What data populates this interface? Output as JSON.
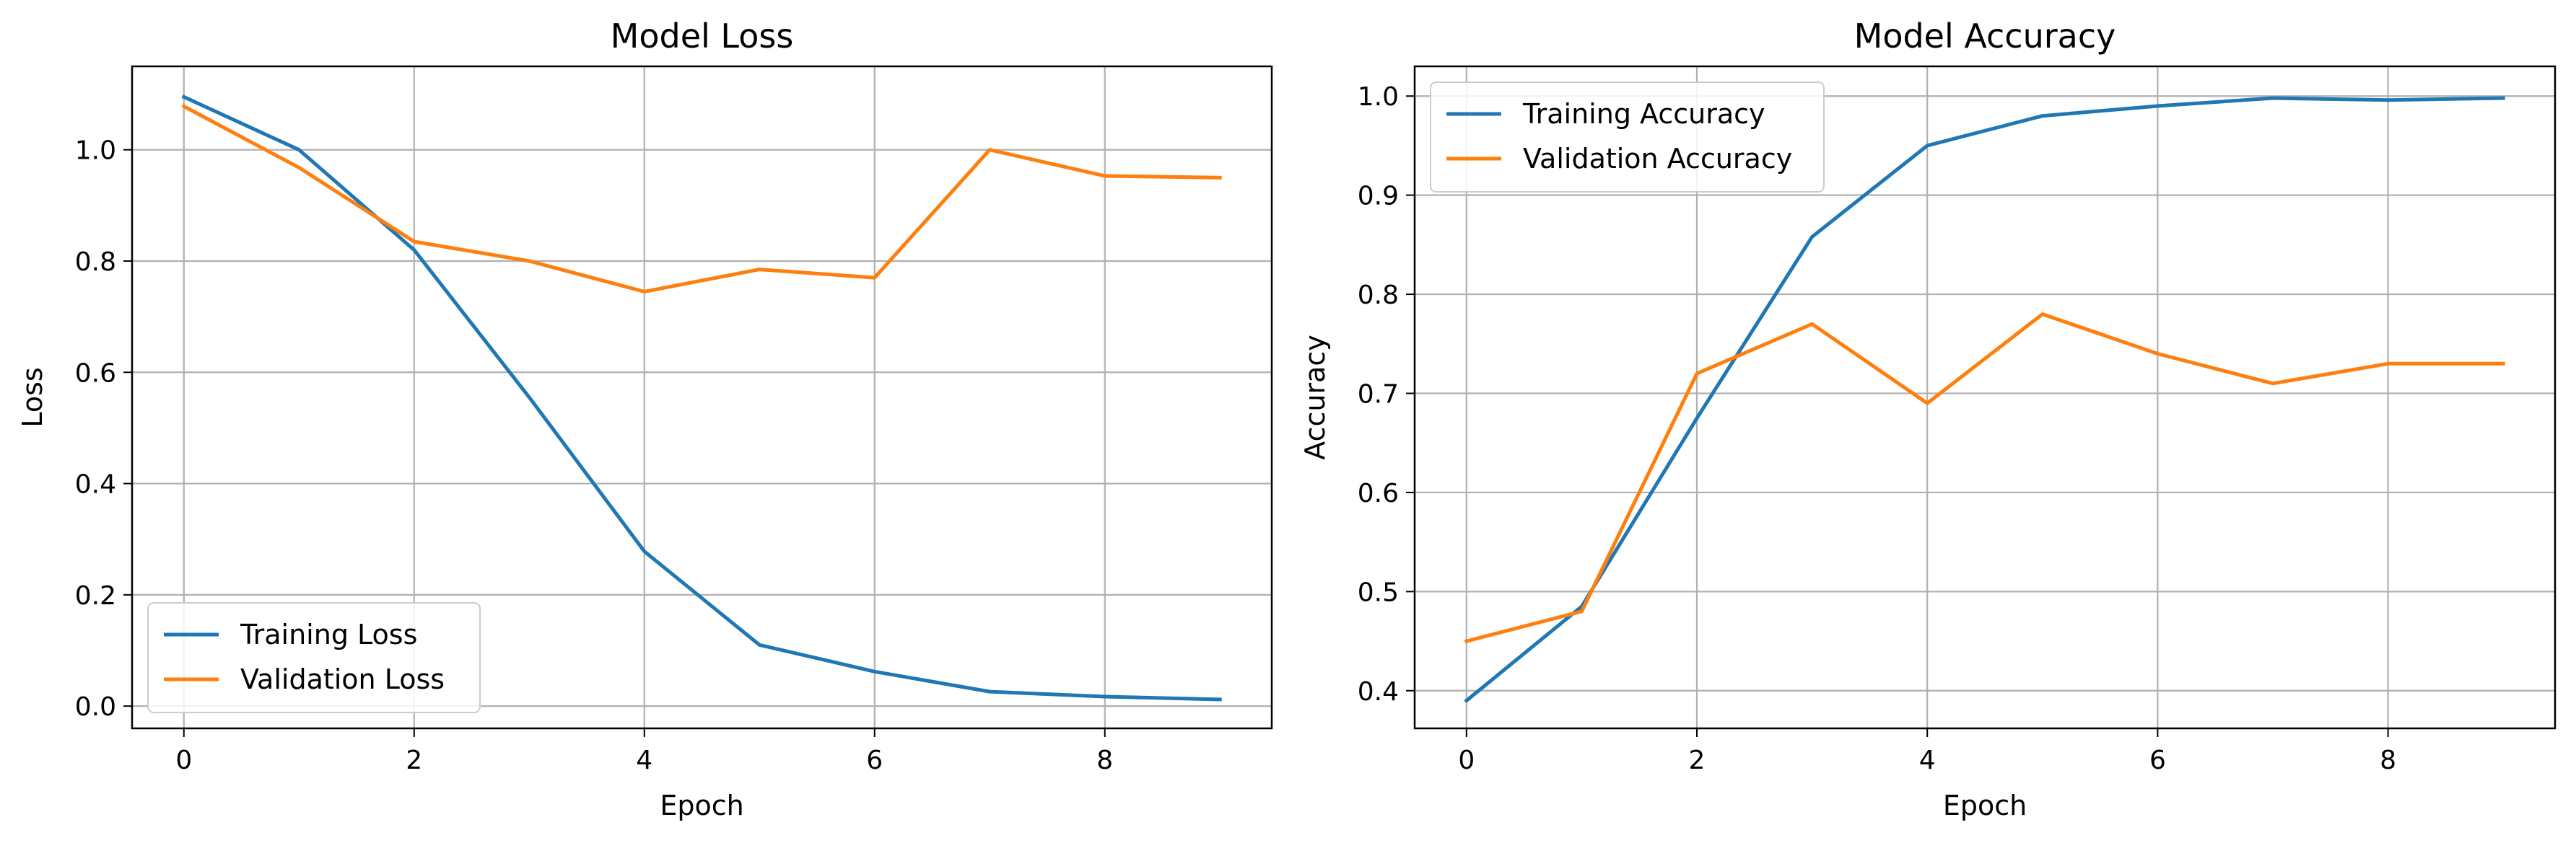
{
  "colors": {
    "training": "#1f77b4",
    "validation": "#ff7f0e",
    "grid": "#b0b0b0",
    "axes": "#000000"
  },
  "chart_data": [
    {
      "type": "line",
      "title": "Model Loss",
      "xlabel": "Epoch",
      "ylabel": "Loss",
      "xlim": [
        -0.45,
        9.45
      ],
      "ylim": [
        -0.04,
        1.15
      ],
      "xticks": [
        "0",
        "2",
        "4",
        "6",
        "8"
      ],
      "yticks": [
        "0.0",
        "0.2",
        "0.4",
        "0.6",
        "0.8",
        "1.0"
      ],
      "grid": true,
      "legend_position": "lower-left",
      "x": [
        0,
        1,
        2,
        3,
        4,
        5,
        6,
        7,
        8,
        9
      ],
      "series": [
        {
          "name": "Training Loss",
          "color_key": "training",
          "values": [
            1.095,
            1.0,
            0.82,
            0.555,
            0.278,
            0.11,
            0.062,
            0.026,
            0.017,
            0.012
          ]
        },
        {
          "name": "Validation Loss",
          "color_key": "validation",
          "values": [
            1.078,
            0.968,
            0.835,
            0.8,
            0.745,
            0.785,
            0.77,
            1.0,
            0.953,
            0.95
          ]
        }
      ]
    },
    {
      "type": "line",
      "title": "Model Accuracy",
      "xlabel": "Epoch",
      "ylabel": "Accuracy",
      "xlim": [
        -0.45,
        9.45
      ],
      "ylim": [
        0.362,
        1.03
      ],
      "xticks": [
        "0",
        "2",
        "4",
        "6",
        "8"
      ],
      "yticks": [
        "0.4",
        "0.5",
        "0.6",
        "0.7",
        "0.8",
        "0.9",
        "1.0"
      ],
      "grid": true,
      "legend_position": "upper-left",
      "x": [
        0,
        1,
        2,
        3,
        4,
        5,
        6,
        7,
        8,
        9
      ],
      "series": [
        {
          "name": "Training Accuracy",
          "color_key": "training",
          "values": [
            0.39,
            0.485,
            0.675,
            0.858,
            0.95,
            0.98,
            0.99,
            0.998,
            0.996,
            0.998
          ]
        },
        {
          "name": "Validation Accuracy",
          "color_key": "validation",
          "values": [
            0.45,
            0.48,
            0.72,
            0.77,
            0.69,
            0.78,
            0.74,
            0.71,
            0.73,
            0.73
          ]
        }
      ]
    }
  ]
}
